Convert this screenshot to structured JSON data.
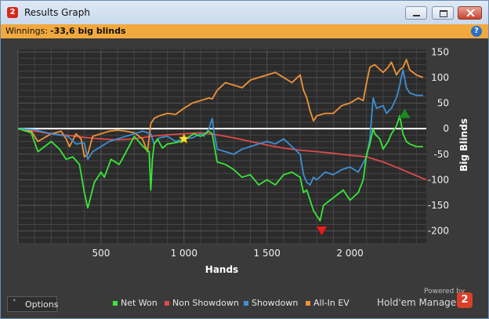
{
  "window": {
    "title": "Results Graph",
    "app_icon_glyph": "2"
  },
  "info_bar": {
    "label": "Winnings:",
    "value": "-33,6 big blinds",
    "help_glyph": "?"
  },
  "options": {
    "label": "Options",
    "chevron": "˄"
  },
  "branding": {
    "powered_by": "Powered by",
    "product": "Hold'em Manager",
    "logo_glyph": "2"
  },
  "colors": {
    "net_won": "#39e639",
    "non_showdown": "#e04a4a",
    "showdown": "#3d8fd6",
    "all_in_ev": "#f0933a",
    "info_bar": "#f1a93e"
  },
  "chart_data": {
    "type": "line",
    "xlabel": "Hands",
    "ylabel": "Big Blinds",
    "xlim": [
      0,
      2460
    ],
    "ylim": [
      -225,
      155
    ],
    "x_ticks": [
      500,
      1000,
      1500,
      2000
    ],
    "x_tick_labels": [
      "500",
      "1 000",
      "1 500",
      "2 000"
    ],
    "y_ticks": [
      150,
      100,
      50,
      0,
      -50,
      -100,
      -150,
      -200
    ],
    "y_tick_labels": [
      "150",
      "100",
      "50",
      "0",
      "-50",
      "-100",
      "-150",
      "-200"
    ],
    "grid": true,
    "legend_position": "bottom",
    "series": [
      {
        "name": "Net Won",
        "color": "#39e639",
        "x": [
          0,
          80,
          120,
          200,
          250,
          290,
          330,
          370,
          400,
          420,
          460,
          500,
          520,
          560,
          610,
          660,
          700,
          740,
          770,
          790,
          800,
          810,
          820,
          840,
          870,
          900,
          940,
          980,
          1020,
          1060,
          1100,
          1150,
          1170,
          1200,
          1250,
          1300,
          1350,
          1400,
          1450,
          1500,
          1550,
          1600,
          1650,
          1700,
          1720,
          1740,
          1780,
          1800,
          1820,
          1840,
          1880,
          1920,
          1960,
          2000,
          2050,
          2080,
          2100,
          2120,
          2140,
          2150,
          2180,
          2200,
          2230,
          2250,
          2280,
          2300,
          2320,
          2340,
          2360,
          2400,
          2440
        ],
        "y": [
          0,
          -8,
          -45,
          -25,
          -40,
          -60,
          -55,
          -70,
          -125,
          -155,
          -105,
          -85,
          -95,
          -60,
          -70,
          -40,
          -15,
          -30,
          -40,
          -45,
          -120,
          -60,
          -30,
          -20,
          -38,
          -30,
          -28,
          -25,
          -18,
          -10,
          -15,
          -5,
          -10,
          -65,
          -70,
          -80,
          -95,
          -90,
          -110,
          -100,
          -110,
          -90,
          -85,
          -95,
          -125,
          -120,
          -160,
          -170,
          -180,
          -150,
          -140,
          -130,
          -120,
          -140,
          -125,
          -100,
          -50,
          -30,
          0,
          -10,
          -20,
          -40,
          -25,
          -10,
          5,
          25,
          -10,
          -25,
          -30,
          -35,
          -35
        ]
      },
      {
        "name": "Non Showdown",
        "color": "#e04a4a",
        "x": [
          0,
          100,
          200,
          300,
          400,
          500,
          600,
          700,
          800,
          900,
          1000,
          1100,
          1200,
          1300,
          1400,
          1500,
          1600,
          1700,
          1800,
          1900,
          2000,
          2100,
          2200,
          2300,
          2400,
          2460
        ],
        "y": [
          0,
          -5,
          -10,
          -13,
          -17,
          -20,
          -22,
          -20,
          -15,
          -12,
          -10,
          -8,
          -12,
          -18,
          -25,
          -32,
          -38,
          -42,
          -45,
          -48,
          -52,
          -55,
          -65,
          -78,
          -92,
          -100
        ]
      },
      {
        "name": "Showdown",
        "color": "#3d8fd6",
        "x": [
          0,
          100,
          200,
          300,
          350,
          400,
          420,
          450,
          500,
          550,
          600,
          650,
          700,
          750,
          780,
          800,
          820,
          850,
          900,
          950,
          1000,
          1050,
          1100,
          1120,
          1150,
          1170,
          1180,
          1200,
          1250,
          1300,
          1350,
          1400,
          1450,
          1500,
          1550,
          1600,
          1650,
          1700,
          1720,
          1740,
          1760,
          1780,
          1800,
          1850,
          1900,
          1950,
          2000,
          2050,
          2100,
          2120,
          2140,
          2160,
          2200,
          2220,
          2250,
          2280,
          2300,
          2320,
          2340,
          2360,
          2400,
          2440
        ],
        "y": [
          0,
          -2,
          -10,
          -15,
          -30,
          -28,
          -60,
          -45,
          -35,
          -25,
          -20,
          -15,
          -10,
          -5,
          -8,
          -10,
          -30,
          -18,
          -15,
          -25,
          -20,
          -18,
          -10,
          -15,
          0,
          20,
          -5,
          -40,
          -45,
          -50,
          -40,
          -35,
          -30,
          -25,
          -30,
          -20,
          -35,
          -50,
          -90,
          -105,
          -110,
          -95,
          -100,
          -85,
          -90,
          -80,
          -75,
          -85,
          -55,
          -20,
          60,
          40,
          45,
          30,
          40,
          60,
          85,
          115,
          80,
          70,
          65,
          65
        ]
      },
      {
        "name": "All-In EV",
        "color": "#f0933a",
        "x": [
          0,
          80,
          120,
          200,
          260,
          290,
          310,
          350,
          380,
          400,
          420,
          450,
          500,
          550,
          600,
          650,
          700,
          750,
          780,
          800,
          820,
          850,
          900,
          950,
          1000,
          1050,
          1100,
          1150,
          1170,
          1200,
          1250,
          1300,
          1350,
          1400,
          1450,
          1500,
          1550,
          1600,
          1650,
          1700,
          1720,
          1740,
          1760,
          1780,
          1800,
          1850,
          1900,
          1950,
          2000,
          2050,
          2080,
          2100,
          2120,
          2150,
          2200,
          2230,
          2250,
          2280,
          2300,
          2320,
          2340,
          2360,
          2400,
          2440
        ],
        "y": [
          0,
          -5,
          -25,
          -10,
          -5,
          -20,
          -35,
          -10,
          -20,
          -55,
          -50,
          -15,
          -10,
          -5,
          -3,
          -5,
          -8,
          -20,
          -45,
          10,
          20,
          25,
          30,
          28,
          40,
          50,
          55,
          60,
          58,
          75,
          90,
          85,
          80,
          95,
          100,
          105,
          110,
          100,
          90,
          105,
          75,
          60,
          35,
          15,
          25,
          30,
          30,
          45,
          50,
          60,
          55,
          90,
          120,
          125,
          110,
          120,
          130,
          105,
          115,
          120,
          135,
          115,
          105,
          100
        ]
      }
    ],
    "markers": [
      {
        "type": "star",
        "x": 1000,
        "y": -20,
        "color": "#ffe030"
      },
      {
        "type": "triangle-down",
        "x": 1830,
        "y": -200,
        "color": "#e02020"
      },
      {
        "type": "triangle-up",
        "x": 2330,
        "y": 30,
        "color": "#1f8a1f"
      }
    ]
  }
}
